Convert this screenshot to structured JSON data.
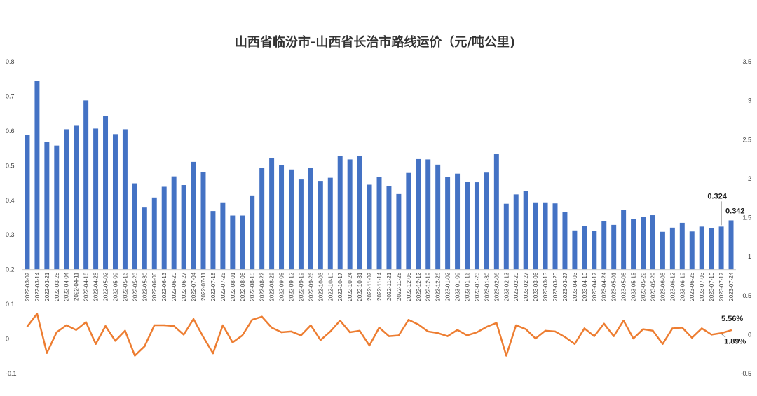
{
  "chart_data": {
    "type": "bar",
    "title": "山西省临汾市-山西省长治市路线运价（元/吨公里)",
    "xlabel": "",
    "ylabel": "",
    "categories": [
      "2022-03-07",
      "2022-03-14",
      "2022-03-21",
      "2022-03-28",
      "2022-04-04",
      "2022-04-11",
      "2022-04-18",
      "2022-04-25",
      "2022-05-02",
      "2022-05-09",
      "2022-05-16",
      "2022-05-23",
      "2022-05-30",
      "2022-06-06",
      "2022-06-13",
      "2022-06-20",
      "2022-06-27",
      "2022-07-04",
      "2022-07-11",
      "2022-07-18",
      "2022-07-25",
      "2022-08-01",
      "2022-08-08",
      "2022-08-15",
      "2022-08-22",
      "2022-08-29",
      "2022-09-05",
      "2022-09-12",
      "2022-09-19",
      "2022-09-26",
      "2022-10-03",
      "2022-10-10",
      "2022-10-17",
      "2022-10-24",
      "2022-10-31",
      "2022-11-07",
      "2022-11-14",
      "2022-11-21",
      "2022-11-28",
      "2022-12-05",
      "2022-12-12",
      "2022-12-19",
      "2022-12-26",
      "2023-01-02",
      "2023-01-09",
      "2023-01-16",
      "2023-01-23",
      "2023-01-30",
      "2023-02-06",
      "2023-02-13",
      "2023-02-20",
      "2023-02-27",
      "2023-03-06",
      "2023-03-13",
      "2023-03-20",
      "2023-03-27",
      "2023-04-03",
      "2023-04-10",
      "2023-04-17",
      "2023-04-24",
      "2023-05-01",
      "2023-05-08",
      "2023-05-15",
      "2023-05-22",
      "2023-05-29",
      "2023-06-05",
      "2023-06-12",
      "2023-06-19",
      "2023-06-26",
      "2023-07-03",
      "2023-07-10",
      "2023-07-17",
      "2023-07-24"
    ],
    "xticks_shown": [
      "2022-03-07",
      "2022-03-14",
      "2022-03-21",
      "2022-03-28",
      "2022-04-04",
      "2022-04-11",
      "2022-04-18",
      "2022-04-25",
      "2022-05-02",
      "2022-05-09",
      "2022-05-16",
      "2022-05-23",
      "2022-05-30",
      "2022-06-06",
      "2022-06-13",
      "2022-06-20",
      "2022-06-27",
      "2022-07-04",
      "2022-07-11",
      "2022-07-18",
      "2022-07-25",
      "2022-08-01",
      "2022-08-08",
      "2022-08-15",
      "2022-08-22",
      "2022-08-29",
      "2022-09-05",
      "2022-09-12",
      "2022-09-19",
      "2022-09-26",
      "2022-10-03",
      "2022-10-10",
      "2022-10-17",
      "2022-10-24",
      "2022-10-31",
      "2022-11-07",
      "2022-11-14",
      "2022-11-21",
      "2022-11-28",
      "2022-12-05",
      "2022-12-12",
      "2022-12-19",
      "2022-12-26",
      "2023-01-02",
      "2023-01-09",
      "2023-01-16",
      "2023-01-23",
      "2023-01-30",
      "2023-02-06",
      "2023-02-13",
      "2023-02-20",
      "2023-02-27",
      "2023-03-06",
      "2023-03-13",
      "2023-03-20",
      "2023-03-27",
      "2023-04-03",
      "2023-04-10",
      "2023-04-17",
      "2023-04-24",
      "2023-05-01",
      "2023-05-08",
      "2023-05-15",
      "2023-05-22",
      "2023-05-29",
      "2023-06-05",
      "2023-06-12",
      "2023-06-19",
      "2023-06-26",
      "2023-07-03",
      "2023-07-10",
      "2023-07-17",
      "2023-07-24"
    ],
    "series": [
      {
        "type": "bar",
        "axis": "left",
        "color": "#4472c4",
        "values": [
          0.588,
          0.745,
          0.568,
          0.558,
          0.605,
          0.615,
          0.688,
          0.607,
          0.644,
          0.591,
          0.605,
          0.449,
          0.379,
          0.408,
          0.439,
          0.469,
          0.444,
          0.511,
          0.481,
          0.369,
          0.394,
          0.356,
          0.356,
          0.414,
          0.493,
          0.521,
          0.502,
          0.489,
          0.46,
          0.494,
          0.456,
          0.465,
          0.527,
          0.518,
          0.529,
          0.445,
          0.467,
          0.442,
          0.418,
          0.479,
          0.519,
          0.518,
          0.503,
          0.467,
          0.477,
          0.454,
          0.452,
          0.48,
          0.533,
          0.39,
          0.417,
          0.427,
          0.394,
          0.394,
          0.391,
          0.366,
          0.313,
          0.326,
          0.311,
          0.339,
          0.329,
          0.373,
          0.346,
          0.353,
          0.357,
          0.309,
          0.321,
          0.335,
          0.31,
          0.324,
          0.319,
          0.324,
          0.342
        ]
      },
      {
        "type": "line",
        "axis": "right",
        "color": "#ed7d31",
        "values": [
          0.105,
          0.268,
          -0.236,
          0.03,
          0.12,
          0.06,
          0.16,
          -0.12,
          0.11,
          -0.08,
          0.05,
          -0.27,
          -0.15,
          0.12,
          0.12,
          0.11,
          0.0,
          0.2,
          -0.03,
          -0.24,
          0.12,
          -0.1,
          -0.01,
          0.19,
          0.23,
          0.09,
          0.03,
          0.04,
          -0.01,
          0.12,
          -0.07,
          0.04,
          0.18,
          0.03,
          0.05,
          -0.14,
          0.09,
          -0.02,
          -0.01,
          0.19,
          0.13,
          0.04,
          0.02,
          -0.02,
          0.06,
          -0.01,
          0.03,
          0.1,
          0.15,
          -0.27,
          0.12,
          0.07,
          -0.05,
          0.05,
          0.04,
          -0.03,
          -0.12,
          0.08,
          -0.02,
          0.14,
          -0.02,
          0.18,
          -0.05,
          0.07,
          0.05,
          -0.12,
          0.08,
          0.09,
          -0.04,
          0.08,
          0.0,
          0.0189,
          0.0556
        ]
      }
    ],
    "y_left": {
      "range": [
        -0.1,
        0.8
      ],
      "ticks": [
        "0.8",
        "0.7",
        "0.6",
        "0.5",
        "0.4",
        "0.3",
        "0.2",
        "0.1",
        "0",
        "-0.1"
      ]
    },
    "y_right": {
      "range": [
        -0.5,
        3.5
      ],
      "ticks": [
        "3.5",
        "3",
        "2.5",
        "2",
        "1.5",
        "1",
        "0.5",
        "0",
        "-0.5"
      ]
    },
    "grid": false,
    "legend": "none",
    "annotations": [
      {
        "label": "0.324",
        "series": 0,
        "index": 71
      },
      {
        "label": "0.342",
        "series": 0,
        "index": 72
      },
      {
        "label": "5.56%",
        "series": 1,
        "index": 72
      },
      {
        "label": "1.89%",
        "series": 1,
        "index": 71
      }
    ]
  }
}
